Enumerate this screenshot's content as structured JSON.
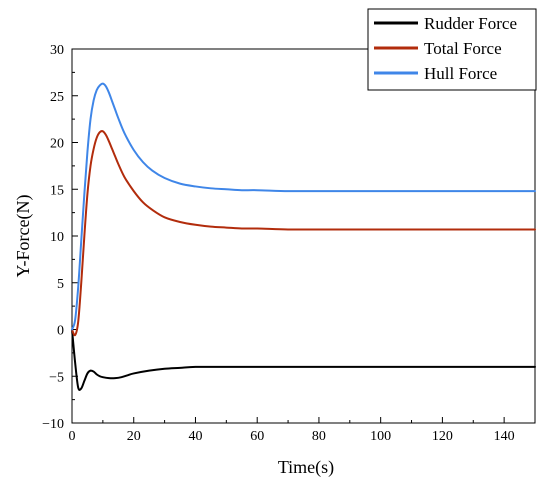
{
  "chart_data": {
    "type": "line",
    "xlabel": "Time(s)",
    "ylabel": "Y-Force(N)",
    "xlim": [
      0,
      150
    ],
    "ylim": [
      -10,
      30
    ],
    "xticks": [
      0,
      20,
      40,
      60,
      80,
      100,
      120,
      140
    ],
    "yticks": [
      -10,
      -5,
      0,
      5,
      10,
      15,
      20,
      25,
      30
    ],
    "grid": false,
    "legend_position": "top-right",
    "series": [
      {
        "name": "Rudder Force",
        "color": "#000000",
        "x": [
          0,
          1,
          2,
          3,
          4,
          5,
          6,
          7,
          8,
          9,
          10,
          12,
          14,
          16,
          18,
          20,
          25,
          30,
          35,
          40,
          50,
          60,
          80,
          100,
          120,
          150
        ],
        "y": [
          0,
          -3.5,
          -6.2,
          -6.3,
          -5.5,
          -4.7,
          -4.4,
          -4.5,
          -4.8,
          -5.0,
          -5.1,
          -5.2,
          -5.2,
          -5.1,
          -4.9,
          -4.7,
          -4.4,
          -4.2,
          -4.1,
          -4.0,
          -4.0,
          -4.0,
          -4.0,
          -4.0,
          -4.0,
          -4.0
        ]
      },
      {
        "name": "Total Force",
        "color": "#b22c0c",
        "x": [
          0,
          1,
          2,
          3,
          4,
          5,
          6,
          7,
          8,
          9,
          10,
          11,
          12,
          13,
          14,
          15,
          17,
          20,
          23,
          26,
          30,
          35,
          40,
          45,
          50,
          55,
          60,
          70,
          80,
          100,
          120,
          150
        ],
        "y": [
          0,
          -0.6,
          0.8,
          5.0,
          10.0,
          14.5,
          17.5,
          19.3,
          20.5,
          21.1,
          21.2,
          20.8,
          20.1,
          19.3,
          18.5,
          17.7,
          16.3,
          14.8,
          13.6,
          12.8,
          12.0,
          11.5,
          11.2,
          11.0,
          10.9,
          10.8,
          10.8,
          10.7,
          10.7,
          10.7,
          10.7,
          10.7
        ]
      },
      {
        "name": "Hull Force",
        "color": "#3f86e8",
        "x": [
          0,
          1,
          2,
          3,
          4,
          5,
          6,
          7,
          8,
          9,
          10,
          11,
          12,
          13,
          14,
          15,
          17,
          20,
          23,
          26,
          30,
          35,
          40,
          45,
          50,
          55,
          60,
          70,
          80,
          100,
          120,
          150
        ],
        "y": [
          0,
          1.0,
          4.5,
          9.5,
          14.5,
          19.0,
          22.5,
          24.5,
          25.6,
          26.1,
          26.3,
          26.0,
          25.3,
          24.4,
          23.5,
          22.6,
          21.0,
          19.2,
          17.9,
          17.0,
          16.2,
          15.6,
          15.3,
          15.1,
          15.0,
          14.9,
          14.9,
          14.8,
          14.8,
          14.8,
          14.8,
          14.8
        ]
      }
    ]
  }
}
